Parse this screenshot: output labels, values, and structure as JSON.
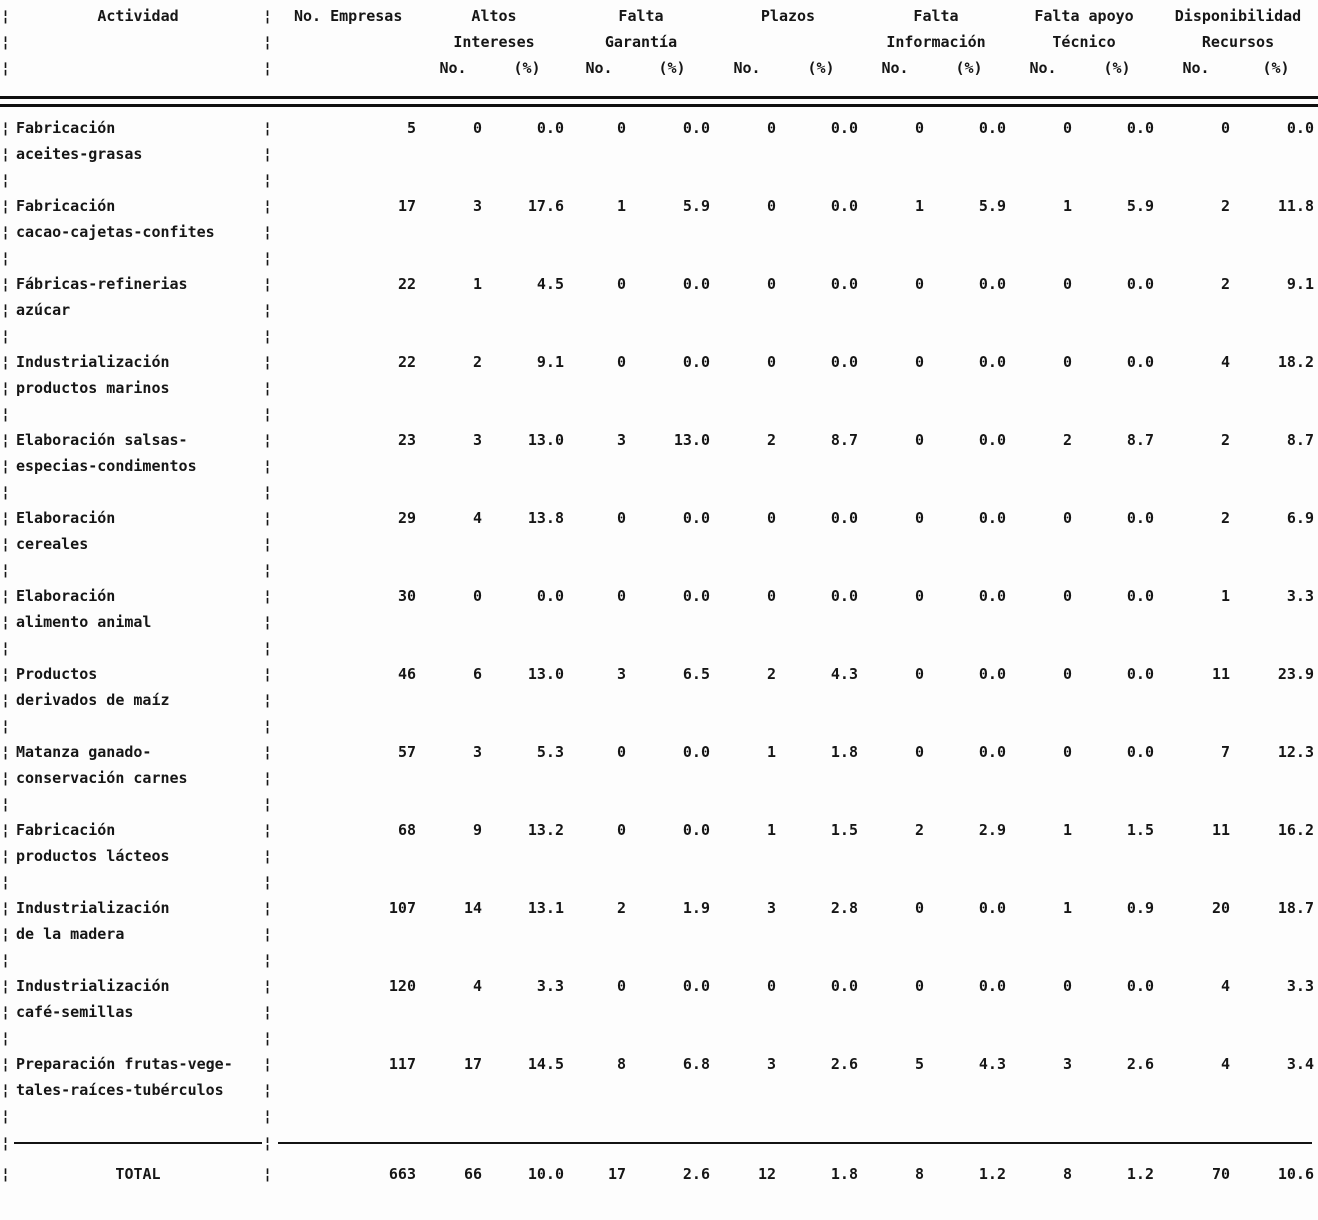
{
  "table": {
    "border_char": "¦",
    "header": {
      "activity": "Actividad",
      "n_companies": "No. Empresas",
      "groups": [
        {
          "top": "Altos",
          "bottom": "Intereses"
        },
        {
          "top": "Falta",
          "bottom": "Garantía"
        },
        {
          "top": "Plazos",
          "bottom": ""
        },
        {
          "top": "Falta",
          "bottom": "Información"
        },
        {
          "top": "Falta apoyo",
          "bottom": "Técnico"
        },
        {
          "top": "Disponibilidad",
          "bottom": "Recursos"
        }
      ],
      "sub_no": "No.",
      "sub_pct": "(%)"
    },
    "rows": [
      {
        "label1": "Fabricación",
        "label2": "aceites-grasas",
        "n": "5",
        "values": [
          "0",
          "0.0",
          "0",
          "0.0",
          "0",
          "0.0",
          "0",
          "0.0",
          "0",
          "0.0",
          "0",
          "0.0"
        ]
      },
      {
        "label1": "Fabricación",
        "label2": "cacao-cajetas-confites",
        "n": "17",
        "values": [
          "3",
          "17.6",
          "1",
          "5.9",
          "0",
          "0.0",
          "1",
          "5.9",
          "1",
          "5.9",
          "2",
          "11.8"
        ]
      },
      {
        "label1": "Fábricas-refinerias",
        "label2": "azúcar",
        "n": "22",
        "values": [
          "1",
          "4.5",
          "0",
          "0.0",
          "0",
          "0.0",
          "0",
          "0.0",
          "0",
          "0.0",
          "2",
          "9.1"
        ]
      },
      {
        "label1": "Industrialización",
        "label2": "productos marinos",
        "n": "22",
        "values": [
          "2",
          "9.1",
          "0",
          "0.0",
          "0",
          "0.0",
          "0",
          "0.0",
          "0",
          "0.0",
          "4",
          "18.2"
        ]
      },
      {
        "label1": "Elaboración salsas-",
        "label2": "especias-condimentos",
        "n": "23",
        "values": [
          "3",
          "13.0",
          "3",
          "13.0",
          "2",
          "8.7",
          "0",
          "0.0",
          "2",
          "8.7",
          "2",
          "8.7"
        ]
      },
      {
        "label1": "Elaboración",
        "label2": "cereales",
        "n": "29",
        "values": [
          "4",
          "13.8",
          "0",
          "0.0",
          "0",
          "0.0",
          "0",
          "0.0",
          "0",
          "0.0",
          "2",
          "6.9"
        ]
      },
      {
        "label1": "Elaboración",
        "label2": "alimento animal",
        "n": "30",
        "values": [
          "0",
          "0.0",
          "0",
          "0.0",
          "0",
          "0.0",
          "0",
          "0.0",
          "0",
          "0.0",
          "1",
          "3.3"
        ]
      },
      {
        "label1": "Productos",
        "label2": "derivados de maíz",
        "n": "46",
        "values": [
          "6",
          "13.0",
          "3",
          "6.5",
          "2",
          "4.3",
          "0",
          "0.0",
          "0",
          "0.0",
          "11",
          "23.9"
        ]
      },
      {
        "label1": "Matanza ganado-",
        "label2": "conservación carnes",
        "n": "57",
        "values": [
          "3",
          "5.3",
          "0",
          "0.0",
          "1",
          "1.8",
          "0",
          "0.0",
          "0",
          "0.0",
          "7",
          "12.3"
        ]
      },
      {
        "label1": "Fabricación",
        "label2": "productos lácteos",
        "n": "68",
        "values": [
          "9",
          "13.2",
          "0",
          "0.0",
          "1",
          "1.5",
          "2",
          "2.9",
          "1",
          "1.5",
          "11",
          "16.2"
        ]
      },
      {
        "label1": "Industrialización",
        "label2": "de la madera",
        "n": "107",
        "values": [
          "14",
          "13.1",
          "2",
          "1.9",
          "3",
          "2.8",
          "0",
          "0.0",
          "1",
          "0.9",
          "20",
          "18.7"
        ]
      },
      {
        "label1": "Industrialización",
        "label2": "café-semillas",
        "n": "120",
        "values": [
          "4",
          "3.3",
          "0",
          "0.0",
          "0",
          "0.0",
          "0",
          "0.0",
          "0",
          "0.0",
          "4",
          "3.3"
        ]
      },
      {
        "label1": "Preparación frutas-vege-",
        "label2": "tales-raíces-tubérculos",
        "n": "117",
        "values": [
          "17",
          "14.5",
          "8",
          "6.8",
          "3",
          "2.6",
          "5",
          "4.3",
          "3",
          "2.6",
          "4",
          "3.4"
        ]
      }
    ],
    "total": {
      "label": "TOTAL",
      "n": "663",
      "values": [
        "66",
        "10.0",
        "17",
        "2.6",
        "12",
        "1.8",
        "8",
        "1.2",
        "8",
        "1.2",
        "70",
        "10.6"
      ]
    }
  }
}
